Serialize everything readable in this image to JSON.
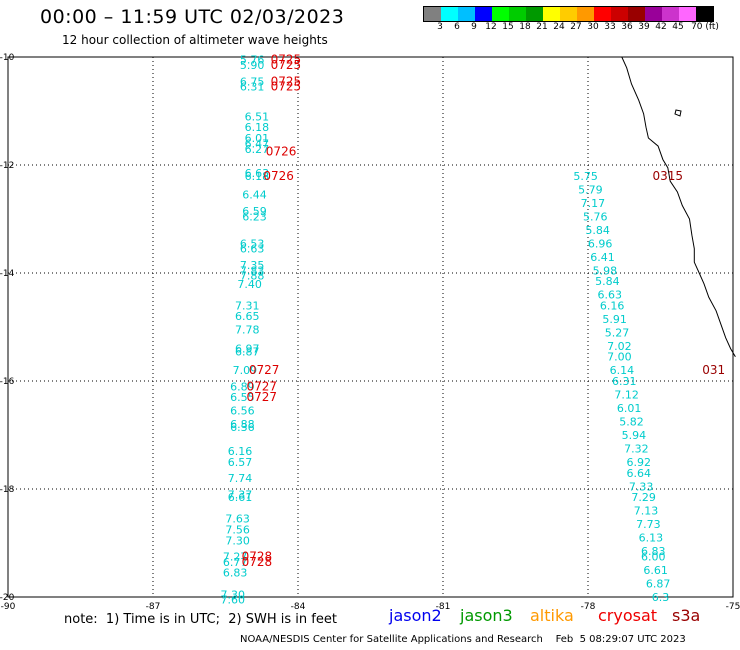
{
  "header": {
    "title": "00:00 – 11:59 UTC 02/03/2023",
    "subtitle": "12 hour collection of altimeter wave heights"
  },
  "colorbar": {
    "colors": [
      "#808080",
      "#00ffff",
      "#00bfff",
      "#0000ff",
      "#00ff00",
      "#00cc00",
      "#009900",
      "#ffff00",
      "#ffcc00",
      "#ff9900",
      "#ff0000",
      "#cc0000",
      "#990000",
      "#990099",
      "#cc33cc",
      "#ff66ff",
      "#000000"
    ],
    "labels": [
      "3",
      "6",
      "9",
      "12",
      "15",
      "18",
      "21",
      "24",
      "27",
      "30",
      "33",
      "36",
      "39",
      "42",
      "45",
      "70 (ft)"
    ]
  },
  "axes": {
    "x_ticks": [
      "-90",
      "-87",
      "-84",
      "-81",
      "-78",
      "-75"
    ],
    "y_ticks": [
      "-10",
      "-12",
      "-14",
      "-16",
      "-18",
      "-20"
    ],
    "x_range": [
      -90,
      -75
    ],
    "y_range": [
      -20,
      -10
    ],
    "grid": "dotted"
  },
  "map_data": {
    "swh_color": "#00cccc",
    "time_color": "#dd0000",
    "left_track": [
      {
        "lat": -10.05,
        "lon": -84.95,
        "v": "5.76"
      },
      {
        "lat": -10.15,
        "lon": -84.95,
        "v": "5.90"
      },
      {
        "lat": -10.45,
        "lon": -84.95,
        "v": "6.75"
      },
      {
        "lat": -10.55,
        "lon": -84.95,
        "v": "6.31"
      },
      {
        "lat": -11.1,
        "lon": -84.85,
        "v": "6.51"
      },
      {
        "lat": -11.3,
        "lon": -84.85,
        "v": "6.18"
      },
      {
        "lat": -11.5,
        "lon": -84.85,
        "v": "6.01"
      },
      {
        "lat": -11.6,
        "lon": -84.85,
        "v": "6.47"
      },
      {
        "lat": -11.7,
        "lon": -84.85,
        "v": "6.27"
      },
      {
        "lat": -12.15,
        "lon": -84.85,
        "v": "6.63"
      },
      {
        "lat": -12.2,
        "lon": -84.85,
        "v": "6.18"
      },
      {
        "lat": -12.55,
        "lon": -84.9,
        "v": "6.44"
      },
      {
        "lat": -12.85,
        "lon": -84.9,
        "v": "6.59"
      },
      {
        "lat": -12.95,
        "lon": -84.9,
        "v": "6.23"
      },
      {
        "lat": -13.45,
        "lon": -84.95,
        "v": "6.53"
      },
      {
        "lat": -13.55,
        "lon": -84.95,
        "v": "6.63"
      },
      {
        "lat": -13.85,
        "lon": -84.95,
        "v": "7.35"
      },
      {
        "lat": -13.95,
        "lon": -84.95,
        "v": "7.83"
      },
      {
        "lat": -14.05,
        "lon": -84.95,
        "v": "7.88"
      },
      {
        "lat": -14.2,
        "lon": -85.0,
        "v": "7.40"
      },
      {
        "lat": -14.6,
        "lon": -85.05,
        "v": "7.31"
      },
      {
        "lat": -14.8,
        "lon": -85.05,
        "v": "6.65"
      },
      {
        "lat": -15.05,
        "lon": -85.05,
        "v": "7.78"
      },
      {
        "lat": -15.4,
        "lon": -85.05,
        "v": "6.97"
      },
      {
        "lat": -15.45,
        "lon": -85.05,
        "v": "6.87"
      },
      {
        "lat": -15.8,
        "lon": -85.1,
        "v": "7.09"
      },
      {
        "lat": -16.1,
        "lon": -85.15,
        "v": "6.89"
      },
      {
        "lat": -16.3,
        "lon": -85.15,
        "v": "6.55"
      },
      {
        "lat": -16.55,
        "lon": -85.15,
        "v": "6.56"
      },
      {
        "lat": -16.8,
        "lon": -85.15,
        "v": "6.88"
      },
      {
        "lat": -16.85,
        "lon": -85.15,
        "v": "6.36"
      },
      {
        "lat": -17.3,
        "lon": -85.2,
        "v": "6.16"
      },
      {
        "lat": -17.5,
        "lon": -85.2,
        "v": "6.57"
      },
      {
        "lat": -17.8,
        "lon": -85.2,
        "v": "7.74"
      },
      {
        "lat": -18.1,
        "lon": -85.2,
        "v": "7.37"
      },
      {
        "lat": -18.15,
        "lon": -85.2,
        "v": "6.61"
      },
      {
        "lat": -18.55,
        "lon": -85.25,
        "v": "7.63"
      },
      {
        "lat": -18.75,
        "lon": -85.25,
        "v": "7.56"
      },
      {
        "lat": -18.95,
        "lon": -85.25,
        "v": "7.30"
      },
      {
        "lat": -19.25,
        "lon": -85.3,
        "v": "7.27"
      },
      {
        "lat": -19.35,
        "lon": -85.3,
        "v": "6.77"
      },
      {
        "lat": -19.55,
        "lon": -85.3,
        "v": "6.83"
      },
      {
        "lat": -19.95,
        "lon": -85.35,
        "v": "7.30"
      },
      {
        "lat": -20.05,
        "lon": -85.35,
        "v": "7.60"
      }
    ],
    "left_times": [
      {
        "lat": -10.05,
        "lon": -84.25,
        "t": "0725"
      },
      {
        "lat": -10.15,
        "lon": -84.25,
        "t": "0725"
      },
      {
        "lat": -10.45,
        "lon": -84.25,
        "t": "0725"
      },
      {
        "lat": -10.55,
        "lon": -84.25,
        "t": "0725"
      },
      {
        "lat": -11.75,
        "lon": -84.35,
        "t": "0726"
      },
      {
        "lat": -12.2,
        "lon": -84.4,
        "t": "0726"
      },
      {
        "lat": -15.8,
        "lon": -84.7,
        "t": "0727"
      },
      {
        "lat": -16.1,
        "lon": -84.75,
        "t": "0727"
      },
      {
        "lat": -16.3,
        "lon": -84.75,
        "t": "0727"
      },
      {
        "lat": -19.25,
        "lon": -84.85,
        "t": "0728"
      },
      {
        "lat": -19.35,
        "lon": -84.85,
        "t": "0728"
      }
    ],
    "right_track": [
      {
        "lat": -12.2,
        "lon": -78.05,
        "v": "5.75"
      },
      {
        "lat": -12.45,
        "lon": -77.95,
        "v": "5.79"
      },
      {
        "lat": -12.7,
        "lon": -77.9,
        "v": "7.17"
      },
      {
        "lat": -12.95,
        "lon": -77.85,
        "v": "5.76"
      },
      {
        "lat": -13.2,
        "lon": -77.8,
        "v": "5.84"
      },
      {
        "lat": -13.45,
        "lon": -77.75,
        "v": "6.96"
      },
      {
        "lat": -13.7,
        "lon": -77.7,
        "v": "6.41"
      },
      {
        "lat": -13.95,
        "lon": -77.65,
        "v": "5.98"
      },
      {
        "lat": -14.15,
        "lon": -77.6,
        "v": "5.84"
      },
      {
        "lat": -14.4,
        "lon": -77.55,
        "v": "6.63"
      },
      {
        "lat": -14.6,
        "lon": -77.5,
        "v": "6.16"
      },
      {
        "lat": -14.85,
        "lon": -77.45,
        "v": "5.91"
      },
      {
        "lat": -15.1,
        "lon": -77.4,
        "v": "5.27"
      },
      {
        "lat": -15.35,
        "lon": -77.35,
        "v": "7.02"
      },
      {
        "lat": -15.55,
        "lon": -77.35,
        "v": "7.00"
      },
      {
        "lat": -15.8,
        "lon": -77.3,
        "v": "6.14"
      },
      {
        "lat": -16.0,
        "lon": -77.25,
        "v": "6.31"
      },
      {
        "lat": -16.25,
        "lon": -77.2,
        "v": "7.12"
      },
      {
        "lat": -16.5,
        "lon": -77.15,
        "v": "6.01"
      },
      {
        "lat": -16.75,
        "lon": -77.1,
        "v": "5.82"
      },
      {
        "lat": -17.0,
        "lon": -77.05,
        "v": "5.94"
      },
      {
        "lat": -17.25,
        "lon": -77.0,
        "v": "7.32"
      },
      {
        "lat": -17.5,
        "lon": -76.95,
        "v": "6.92"
      },
      {
        "lat": -17.7,
        "lon": -76.95,
        "v": "6.64"
      },
      {
        "lat": -17.95,
        "lon": -76.9,
        "v": "7.33"
      },
      {
        "lat": -18.15,
        "lon": -76.85,
        "v": "7.29"
      },
      {
        "lat": -18.4,
        "lon": -76.8,
        "v": "7.13"
      },
      {
        "lat": -18.65,
        "lon": -76.75,
        "v": "7.73"
      },
      {
        "lat": -18.9,
        "lon": -76.7,
        "v": "6.13"
      },
      {
        "lat": -19.15,
        "lon": -76.65,
        "v": "6.83"
      },
      {
        "lat": -19.25,
        "lon": -76.65,
        "v": "6.00"
      },
      {
        "lat": -19.5,
        "lon": -76.6,
        "v": "6.61"
      },
      {
        "lat": -19.75,
        "lon": -76.55,
        "v": "6.87"
      },
      {
        "lat": -20.0,
        "lon": -76.5,
        "v": "6.3"
      }
    ],
    "right_times": [
      {
        "lat": -12.2,
        "lon": -76.35,
        "t": "0315"
      },
      {
        "lat": -15.8,
        "lon": -75.4,
        "t": "031"
      }
    ],
    "coast": [
      [
        -10.0,
        -77.3
      ],
      [
        -10.2,
        -77.2
      ],
      [
        -10.5,
        -77.1
      ],
      [
        -10.8,
        -76.95
      ],
      [
        -11.05,
        -76.85
      ],
      [
        -11.3,
        -76.8
      ],
      [
        -11.5,
        -76.75
      ],
      [
        -11.65,
        -76.55
      ],
      [
        -11.9,
        -76.45
      ],
      [
        -12.05,
        -76.35
      ],
      [
        -12.3,
        -76.3
      ],
      [
        -12.5,
        -76.15
      ],
      [
        -12.75,
        -76.05
      ],
      [
        -13.0,
        -75.9
      ],
      [
        -13.3,
        -75.85
      ],
      [
        -13.55,
        -75.8
      ],
      [
        -13.8,
        -75.8
      ],
      [
        -14.0,
        -75.7
      ],
      [
        -14.2,
        -75.6
      ],
      [
        -14.45,
        -75.5
      ],
      [
        -14.7,
        -75.35
      ],
      [
        -14.95,
        -75.25
      ],
      [
        -15.2,
        -75.15
      ],
      [
        -15.4,
        -75.05
      ],
      [
        -15.55,
        -74.95
      ]
    ]
  },
  "footer": {
    "note": "note:  1) Time is in UTC;  2) SWH is in feet",
    "credit": "NOAA/NESDIS Center for Satellite Applications and Research    Feb  5 08:29:07 UTC 2023",
    "legend": [
      {
        "name": "jason2",
        "color": "#0000ee"
      },
      {
        "name": "jason3",
        "color": "#009900"
      },
      {
        "name": "altika",
        "color": "#ff9900"
      },
      {
        "name": "cryosat",
        "color": "#ee0000"
      },
      {
        "name": "s3a",
        "color": "#990000"
      }
    ]
  }
}
